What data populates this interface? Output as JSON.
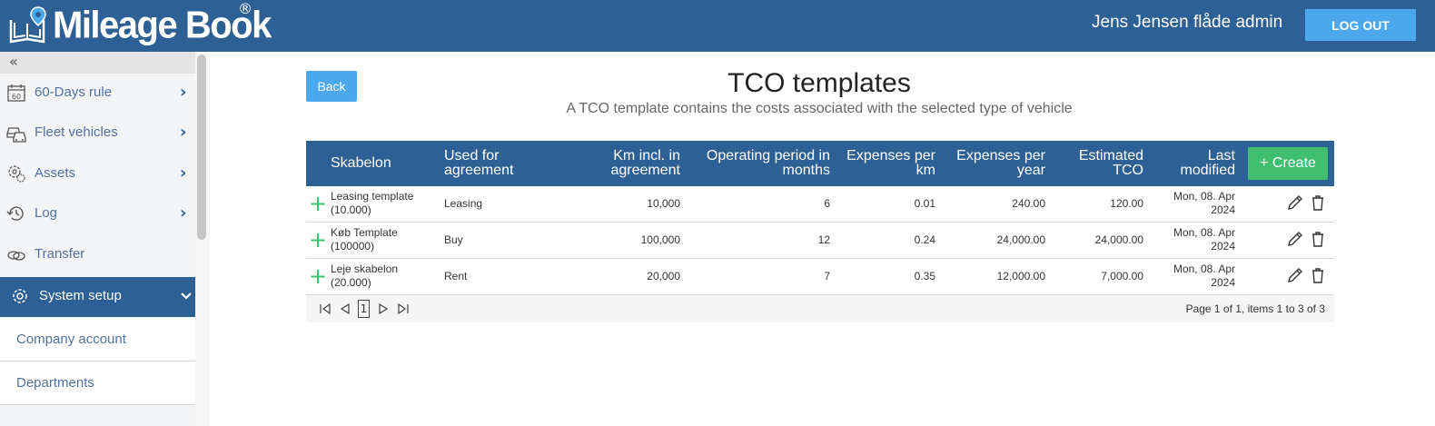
{
  "app": {
    "brand": "Mileage Book",
    "brand_reg": "®",
    "user": "Jens Jensen flåde admin",
    "logout_label": "LOG OUT"
  },
  "sidebar": {
    "collapse_label": "«",
    "items": [
      {
        "label": "60-Days rule",
        "icon": "calendar-60-icon"
      },
      {
        "label": "Fleet vehicles",
        "icon": "cars-icon"
      },
      {
        "label": "Assets",
        "icon": "asset-gear-icon"
      },
      {
        "label": "Log",
        "icon": "history-icon"
      },
      {
        "label": "Transfer",
        "icon": "transfer-icon"
      },
      {
        "label": "System setup",
        "icon": "gear-icon"
      }
    ],
    "sub_items": [
      {
        "label": "Company account"
      },
      {
        "label": "Departments"
      }
    ]
  },
  "main": {
    "back_label": "Back",
    "title": "TCO templates",
    "subtitle": "A TCO template contains the costs associated with the selected type of vehicle",
    "create_label": "+ Create",
    "columns": {
      "c1": "Skabelon",
      "c2a": "Used for",
      "c2b": "agreement",
      "c3a": "Km incl. in",
      "c3b": "agreement",
      "c4a": "Operating period in",
      "c4b": "months",
      "c5a": "Expenses per",
      "c5b": "km",
      "c6a": "Expenses per",
      "c6b": "year",
      "c7a": "Estimated",
      "c7b": "TCO",
      "c8a": "Last",
      "c8b": "modified"
    },
    "rows": [
      {
        "name1": "Leasing template",
        "name2": "(10.000)",
        "used": "Leasing",
        "km": "10,000",
        "months": "6",
        "per_km": "0.01",
        "per_year": "240.00",
        "tco": "120.00",
        "mod1": "Mon, 08. Apr",
        "mod2": "2024"
      },
      {
        "name1": "Køb Template",
        "name2": "(100000)",
        "used": "Buy",
        "km": "100,000",
        "months": "12",
        "per_km": "0.24",
        "per_year": "24,000.00",
        "tco": "24,000.00",
        "mod1": "Mon, 08. Apr",
        "mod2": "2024"
      },
      {
        "name1": "Leje skabelon",
        "name2": "(20.000)",
        "used": "Rent",
        "km": "20,000",
        "months": "7",
        "per_km": "0.35",
        "per_year": "12,000.00",
        "tco": "7,000.00",
        "mod1": "Mon, 08. Apr",
        "mod2": "2024"
      }
    ],
    "pager": {
      "current_page": "1",
      "info": "Page 1 of 1, items 1 to 3 of 3"
    }
  },
  "colors": {
    "header": "#2d6094",
    "accent": "#4ba8ed",
    "create": "#3fbe6f"
  }
}
